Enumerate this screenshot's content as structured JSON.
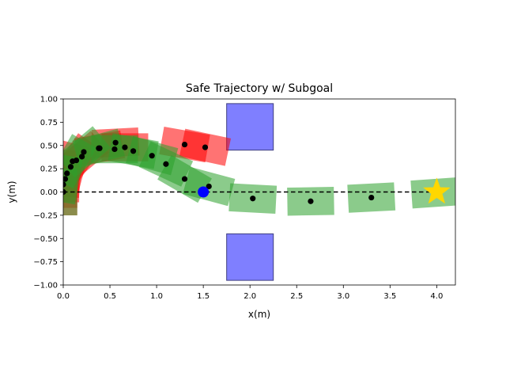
{
  "chart_data": {
    "type": "scatter",
    "title": "Safe Trajectory w/ Subgoal",
    "xlabel": "x(m)",
    "ylabel": "y(m)",
    "xlim": [
      0.0,
      4.2
    ],
    "ylim": [
      -1.0,
      1.0
    ],
    "x_ticks": [
      "0.0",
      "0.5",
      "1.0",
      "1.5",
      "2.0",
      "2.5",
      "3.0",
      "3.5",
      "4.0"
    ],
    "x_tick_values": [
      0.0,
      0.5,
      1.0,
      1.5,
      2.0,
      2.5,
      3.0,
      3.5,
      4.0
    ],
    "y_ticks": [
      "−1.00",
      "−0.75",
      "−0.50",
      "−0.25",
      "0.00",
      "0.25",
      "0.50",
      "0.75",
      "1.00"
    ],
    "y_tick_values": [
      -1.0,
      -0.75,
      -0.5,
      -0.25,
      0.0,
      0.25,
      0.5,
      0.75,
      1.0
    ],
    "grid": false,
    "legend": "none",
    "colors": {
      "safe_robot": "#2ca02c",
      "unsafe_robot": "#ff0000",
      "obstacle": "#7f7fff",
      "obstacle_edge": "#3f3f7f",
      "waypoint": "#000000",
      "subgoal": "#0000ff",
      "goal": "#ffd700",
      "reference": "#000000"
    },
    "obstacles": [
      {
        "x": [
          1.75,
          2.25
        ],
        "y": [
          0.45,
          0.95
        ]
      },
      {
        "x": [
          1.75,
          2.25
        ],
        "y": [
          -0.95,
          -0.45
        ]
      }
    ],
    "reference_line": {
      "y": 0.0,
      "x": [
        0.0,
        4.0
      ],
      "style": "dashed"
    },
    "subgoal": {
      "x": 1.5,
      "y": 0.0
    },
    "goal": {
      "x": 4.0,
      "y": 0.0
    },
    "safe_trajectory": [
      {
        "x": 0.0,
        "y": 0.0,
        "theta": 90
      },
      {
        "x": 0.02,
        "y": 0.14,
        "theta": 80
      },
      {
        "x": 0.1,
        "y": 0.33,
        "theta": 60
      },
      {
        "x": 0.22,
        "y": 0.43,
        "theta": 40
      },
      {
        "x": 0.38,
        "y": 0.47,
        "theta": 15
      },
      {
        "x": 0.55,
        "y": 0.46,
        "theta": 0
      },
      {
        "x": 0.75,
        "y": 0.44,
        "theta": -10
      },
      {
        "x": 0.95,
        "y": 0.39,
        "theta": -15
      },
      {
        "x": 1.1,
        "y": 0.3,
        "theta": -25
      },
      {
        "x": 1.3,
        "y": 0.14,
        "theta": -30
      },
      {
        "x": 1.56,
        "y": 0.06,
        "theta": -15
      },
      {
        "x": 2.03,
        "y": -0.07,
        "theta": -3
      },
      {
        "x": 2.65,
        "y": -0.1,
        "theta": 1
      },
      {
        "x": 3.3,
        "y": -0.06,
        "theta": 3
      },
      {
        "x": 3.98,
        "y": -0.01,
        "theta": 4
      }
    ],
    "unsafe_trajectory": [
      {
        "x": 0.0,
        "y": 0.0,
        "theta": 90
      },
      {
        "x": 0.0,
        "y": 0.08,
        "theta": 90
      },
      {
        "x": 0.02,
        "y": 0.14,
        "theta": 90
      },
      {
        "x": 0.04,
        "y": 0.2,
        "theta": 85
      },
      {
        "x": 0.08,
        "y": 0.27,
        "theta": 75
      },
      {
        "x": 0.14,
        "y": 0.34,
        "theta": 55
      },
      {
        "x": 0.2,
        "y": 0.38,
        "theta": 40
      },
      {
        "x": 0.39,
        "y": 0.47,
        "theta": 10
      },
      {
        "x": 0.56,
        "y": 0.53,
        "theta": 3
      },
      {
        "x": 0.66,
        "y": 0.48,
        "theta": 0
      },
      {
        "x": 1.3,
        "y": 0.51,
        "theta": -10
      },
      {
        "x": 1.52,
        "y": 0.48,
        "theta": -12
      }
    ]
  }
}
